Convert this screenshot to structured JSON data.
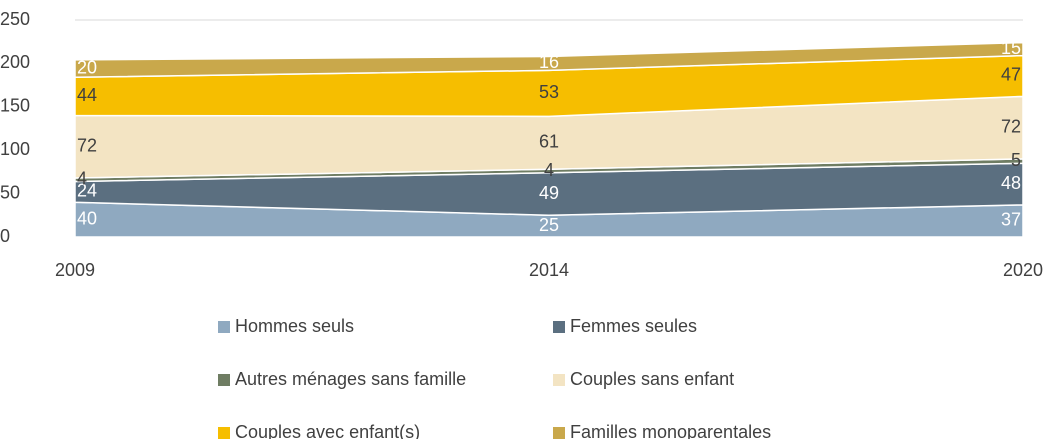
{
  "chart_data": {
    "type": "stacked_area",
    "categories": [
      "2009",
      "2014",
      "2020"
    ],
    "series": [
      {
        "name": "Hommes seuls",
        "color": "#8fa9c0",
        "values": [
          40,
          25,
          37
        ]
      },
      {
        "name": "Femmes seules",
        "color": "#5b6f80",
        "values": [
          24,
          49,
          48
        ]
      },
      {
        "name": "Autres ménages sans famille",
        "color": "#6f7d63",
        "values": [
          4,
          4,
          5
        ]
      },
      {
        "name": "Couples sans enfant",
        "color": "#f3e4c3",
        "values": [
          72,
          61,
          72
        ]
      },
      {
        "name": "Couples avec enfant(s)",
        "color": "#f6be00",
        "values": [
          44,
          53,
          47
        ]
      },
      {
        "name": "Familles monoparentales",
        "color": "#c9a84b",
        "values": [
          20,
          16,
          15
        ]
      }
    ],
    "ylim": [
      0,
      250
    ],
    "yticks": [
      0,
      50,
      100,
      150,
      200,
      250
    ],
    "grid": true
  }
}
